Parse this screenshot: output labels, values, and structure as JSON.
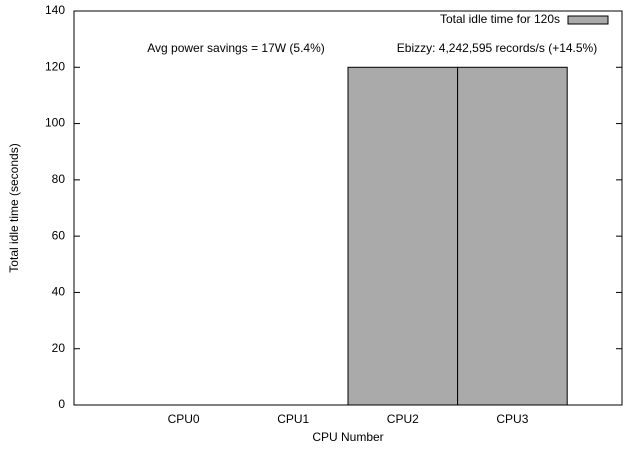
{
  "chart_data": {
    "type": "bar",
    "categories": [
      "CPU0",
      "CPU1",
      "CPU2",
      "CPU3"
    ],
    "series": [
      {
        "name": "Total idle time for 120s",
        "color": "#aaaaaa",
        "values": [
          0,
          0,
          120,
          120
        ]
      }
    ],
    "xlabel": "CPU Number",
    "ylabel": "Total idle time (seconds)",
    "annotations": [
      "Avg power savings = 17W (5.4%)",
      "Ebizzy: 4,242,595 records/s (+14.5%)"
    ],
    "ylim": [
      0,
      140
    ],
    "yticks": [
      0,
      20,
      40,
      60,
      80,
      100,
      120,
      140
    ],
    "legend": "top-right",
    "grid": false
  }
}
